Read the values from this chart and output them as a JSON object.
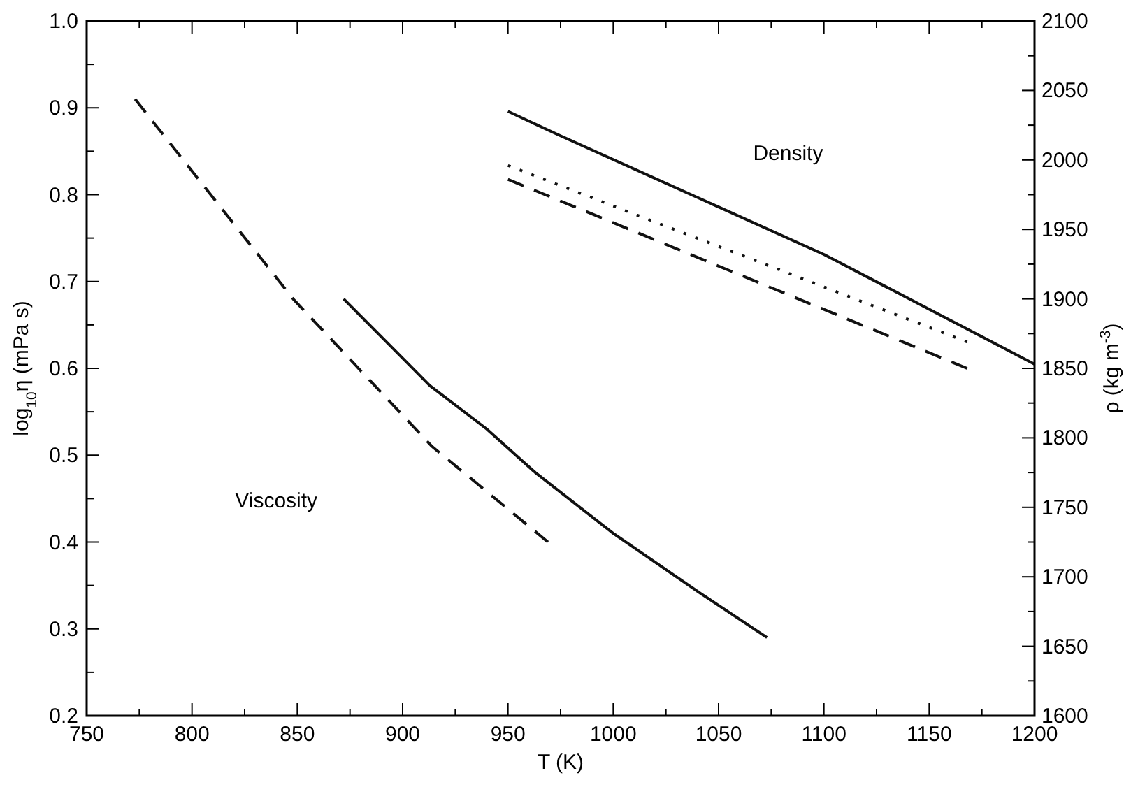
{
  "chart_data": {
    "type": "line",
    "xlabel": "T (K)",
    "ylabel": "log$_{10}$η (mPa s)",
    "y2label": "ρ (kg m$^{-3}$)",
    "xlim": [
      750,
      1200
    ],
    "xticks": [
      750,
      {
        "value": 775,
        "label": null
      },
      800,
      {
        "value": 825,
        "label": null
      },
      850,
      {
        "value": 875,
        "label": null
      },
      900,
      {
        "value": 925,
        "label": null
      },
      950,
      {
        "value": 975,
        "label": null
      },
      1000,
      {
        "value": 1025,
        "label": null
      },
      1050,
      {
        "value": 1075,
        "label": null
      },
      1100,
      {
        "value": 1125,
        "label": null
      },
      1150,
      {
        "value": 1175,
        "label": null
      },
      1200
    ],
    "ylim": [
      0.2,
      1.0
    ],
    "yticks": [
      {
        "value": 0.2,
        "label": "0.2"
      },
      {
        "value": 0.25,
        "label": null
      },
      {
        "value": 0.3,
        "label": "0.3"
      },
      {
        "value": 0.35,
        "label": null
      },
      {
        "value": 0.4,
        "label": "0.4"
      },
      {
        "value": 0.45,
        "label": null
      },
      {
        "value": 0.5,
        "label": "0.5"
      },
      {
        "value": 0.55,
        "label": null
      },
      {
        "value": 0.6,
        "label": "0.6"
      },
      {
        "value": 0.65,
        "label": null
      },
      {
        "value": 0.7,
        "label": "0.7"
      },
      {
        "value": 0.75,
        "label": null
      },
      {
        "value": 0.8,
        "label": "0.8"
      },
      {
        "value": 0.85,
        "label": null
      },
      {
        "value": 0.9,
        "label": "0.9"
      },
      {
        "value": 0.95,
        "label": null
      },
      {
        "value": 1.0,
        "label": "1.0"
      }
    ],
    "y2lim": [
      1600,
      2100
    ],
    "y2ticks": [
      1600,
      {
        "value": 1625,
        "label": null
      },
      1650,
      {
        "value": 1675,
        "label": null
      },
      1700,
      {
        "value": 1725,
        "label": null
      },
      1750,
      {
        "value": 1775,
        "label": null
      },
      1800,
      {
        "value": 1825,
        "label": null
      },
      1850,
      {
        "value": 1875,
        "label": null
      },
      1900,
      {
        "value": 1925,
        "label": null
      },
      1950,
      {
        "value": 1975,
        "label": null
      },
      2000,
      {
        "value": 2025,
        "label": null
      },
      2050,
      {
        "value": 2075,
        "label": null
      },
      2100
    ],
    "grid": false,
    "series": [
      {
        "color": "#111111",
        "line_style": "dashed",
        "x": [
          773,
          848,
          914,
          969
        ],
        "values": [
          0.91,
          0.68,
          0.51,
          0.4
        ]
      },
      {
        "color": "#111111",
        "line_style": "solid",
        "x": [
          872,
          913,
          940,
          963,
          1000,
          1042,
          1073
        ],
        "values": [
          0.68,
          0.58,
          0.53,
          0.48,
          0.41,
          0.34,
          0.29
        ]
      },
      {
        "color": "#111111",
        "line_style": "solid",
        "axis": "y2",
        "x": [
          950,
          974,
          1100,
          1200
        ],
        "values": [
          2035,
          2018,
          1932,
          1853
        ]
      },
      {
        "color": "#111111",
        "line_style": "dotted",
        "axis": "y2",
        "x": [
          950,
          1168
        ],
        "values": [
          1996,
          1869
        ]
      },
      {
        "color": "#111111",
        "line_style": "dashed",
        "axis": "y2",
        "x": [
          950,
          1168
        ],
        "values": [
          1986,
          1850
        ]
      }
    ],
    "annotations": [
      "Viscosity",
      "Density"
    ]
  }
}
